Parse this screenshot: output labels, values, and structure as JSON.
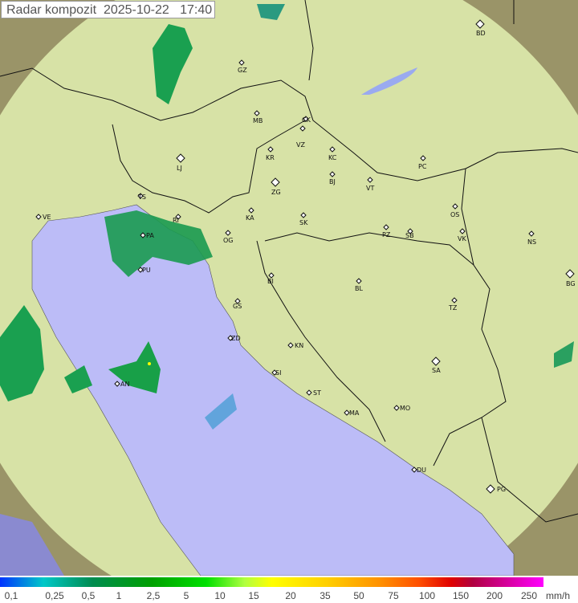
{
  "title": "Radar kompozit  2025-10-22   17:40",
  "legend": {
    "unit": "mm/h",
    "ticks": [
      "0,1",
      "0,25",
      "0,5",
      "1",
      "2,5",
      "5",
      "10",
      "15",
      "20",
      "35",
      "50",
      "75",
      "100",
      "150",
      "200",
      "250"
    ]
  },
  "colors": {
    "sea": "#bdbdf7",
    "land": "#d8e4a8",
    "outside": "#8c8c60",
    "radar_coverage": "#eef5c8"
  },
  "cities": [
    {
      "code": "BD",
      "big": true
    },
    {
      "code": "GZ"
    },
    {
      "code": "MB"
    },
    {
      "code": "CK"
    },
    {
      "code": "VZ"
    },
    {
      "code": "KR"
    },
    {
      "code": "KC"
    },
    {
      "code": "PC"
    },
    {
      "code": "LJ",
      "big": true
    },
    {
      "code": "ZG",
      "big": true
    },
    {
      "code": "BJ"
    },
    {
      "code": "VT"
    },
    {
      "code": "TS"
    },
    {
      "code": "RI"
    },
    {
      "code": "KA"
    },
    {
      "code": "SK"
    },
    {
      "code": "VE"
    },
    {
      "code": "OS"
    },
    {
      "code": "PA"
    },
    {
      "code": "OG"
    },
    {
      "code": "PZ"
    },
    {
      "code": "SB"
    },
    {
      "code": "VK"
    },
    {
      "code": "NS"
    },
    {
      "code": "PU"
    },
    {
      "code": "BG",
      "big": true
    },
    {
      "code": "BI"
    },
    {
      "code": "BL"
    },
    {
      "code": "GS"
    },
    {
      "code": "TZ"
    },
    {
      "code": "ZD"
    },
    {
      "code": "KN"
    },
    {
      "code": "SA",
      "big": true
    },
    {
      "code": "SI"
    },
    {
      "code": "AN"
    },
    {
      "code": "ST"
    },
    {
      "code": "MA"
    },
    {
      "code": "MO"
    },
    {
      "code": "DU"
    },
    {
      "code": "PG",
      "big": true
    }
  ]
}
